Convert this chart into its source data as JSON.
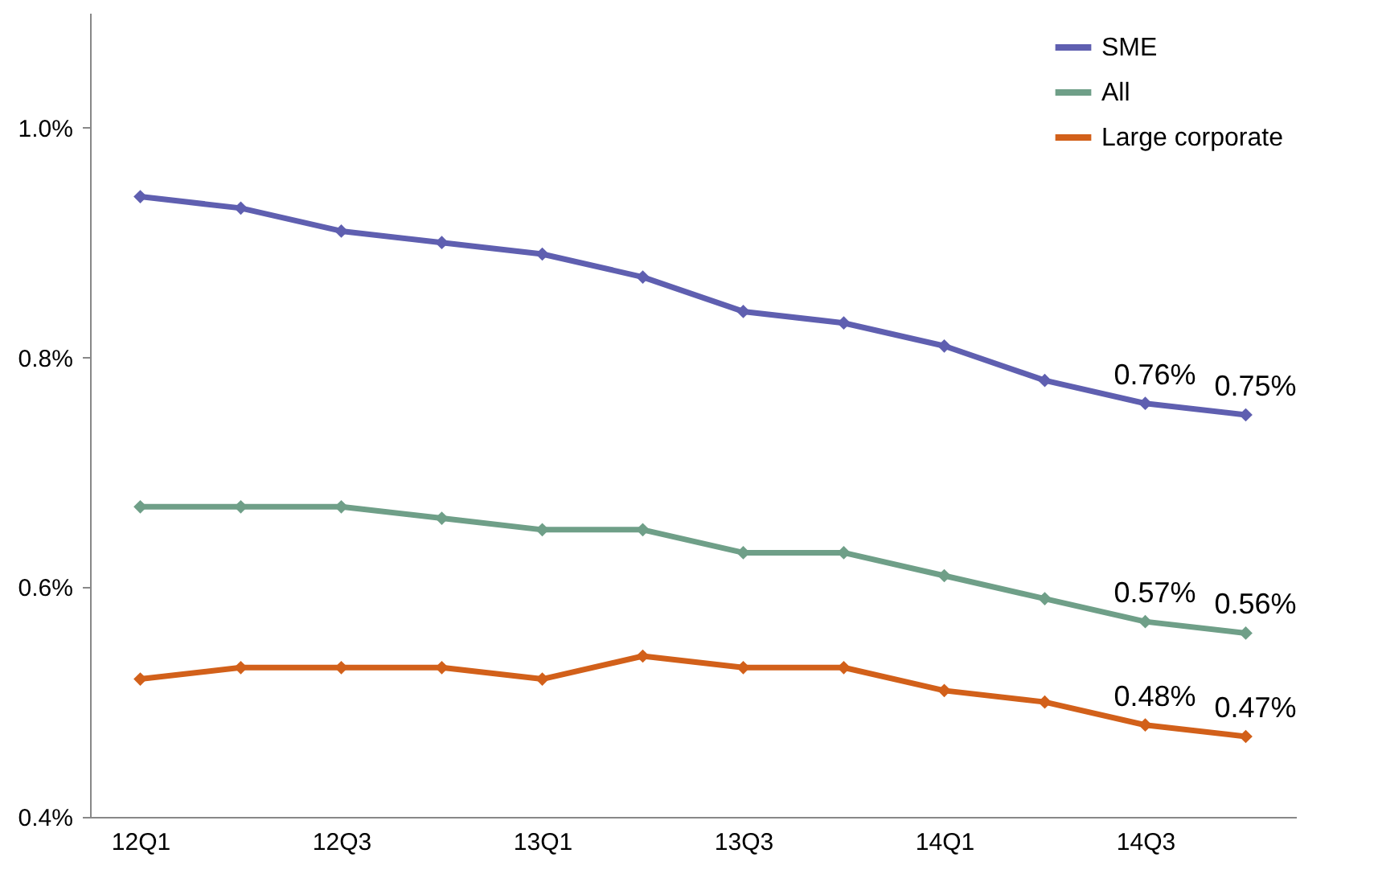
{
  "chart_data": {
    "type": "line",
    "categories": [
      "12Q1",
      null,
      "12Q3",
      null,
      "13Q1",
      null,
      "13Q3",
      null,
      "14Q1",
      null,
      "14Q3",
      null
    ],
    "ylim": [
      0.4,
      1.1
    ],
    "yticks": [
      {
        "value": 0.4,
        "label": "0.4%"
      },
      {
        "value": 0.6,
        "label": "0.6%"
      },
      {
        "value": 0.8,
        "label": "0.8%"
      },
      {
        "value": 1.0,
        "label": "1.0%"
      }
    ],
    "legend": "top right",
    "marker": "diamond",
    "line_style": "solid",
    "series": [
      {
        "name": "SME",
        "color": "#5f5fb0",
        "values": [
          0.94,
          0.93,
          0.91,
          0.9,
          0.89,
          0.87,
          0.84,
          0.83,
          0.81,
          0.78,
          0.76,
          0.75
        ],
        "value_labels": [
          null,
          null,
          null,
          null,
          null,
          null,
          null,
          null,
          null,
          null,
          "0.76%",
          "0.75%"
        ]
      },
      {
        "name": "All",
        "color": "#6f9f88",
        "values": [
          0.67,
          0.67,
          0.67,
          0.66,
          0.65,
          0.65,
          0.63,
          0.63,
          0.61,
          0.59,
          0.57,
          0.56
        ],
        "value_labels": [
          null,
          null,
          null,
          null,
          null,
          null,
          null,
          null,
          null,
          null,
          "0.57%",
          "0.56%"
        ]
      },
      {
        "name": "Large corporate",
        "color": "#d2601a",
        "values": [
          0.52,
          0.53,
          0.53,
          0.53,
          0.52,
          0.54,
          0.53,
          0.53,
          0.51,
          0.5,
          0.48,
          0.47
        ],
        "value_labels": [
          null,
          null,
          null,
          null,
          null,
          null,
          null,
          null,
          null,
          null,
          "0.48%",
          "0.47%"
        ]
      }
    ]
  }
}
